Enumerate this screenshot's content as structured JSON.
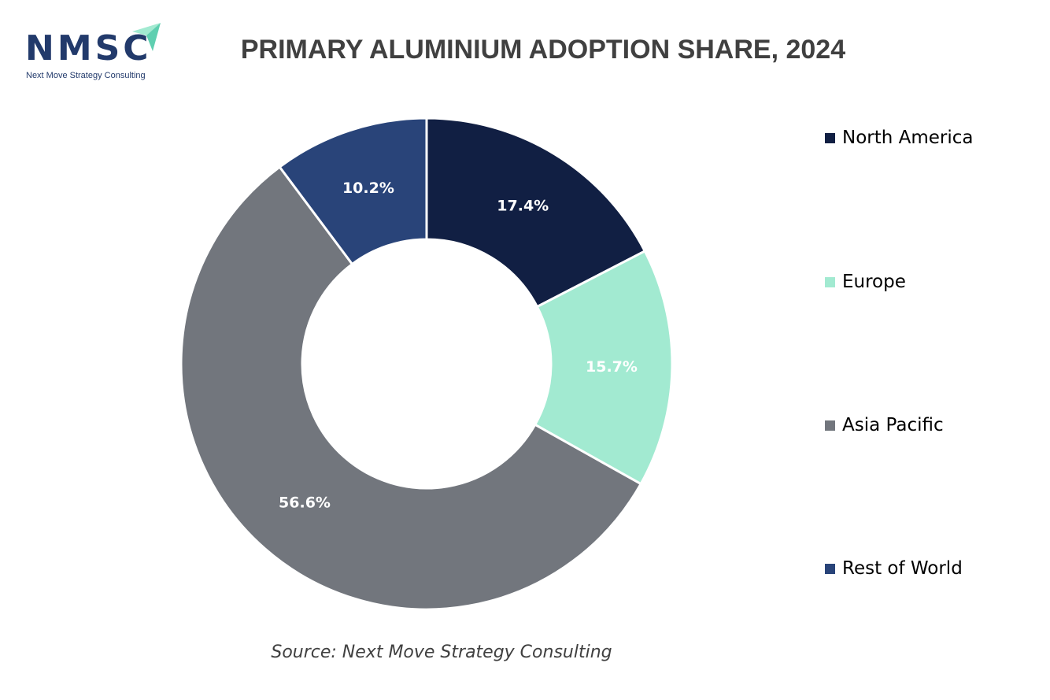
{
  "brand": {
    "letters": "NMSC",
    "tagline": "Next Move Strategy Consulting",
    "letter_color": "#223a6b",
    "accent_color": "#a2ead1"
  },
  "chart_data": {
    "type": "pie",
    "variant": "donut",
    "title": "PRIMARY ALUMINIUM ADOPTION SHARE, 2024",
    "unit": "%",
    "categories": [
      "North America",
      "Europe",
      "Asia Pacific",
      "Rest of World"
    ],
    "values": [
      17.4,
      15.7,
      56.6,
      10.2
    ],
    "labels": [
      "17.4%",
      "15.7%",
      "56.6%",
      "10.2%"
    ],
    "colors": [
      "#111f43",
      "#a2ead1",
      "#72767d",
      "#294479"
    ],
    "legend_position": "right"
  },
  "source": "Source: Next Move Strategy Consulting"
}
